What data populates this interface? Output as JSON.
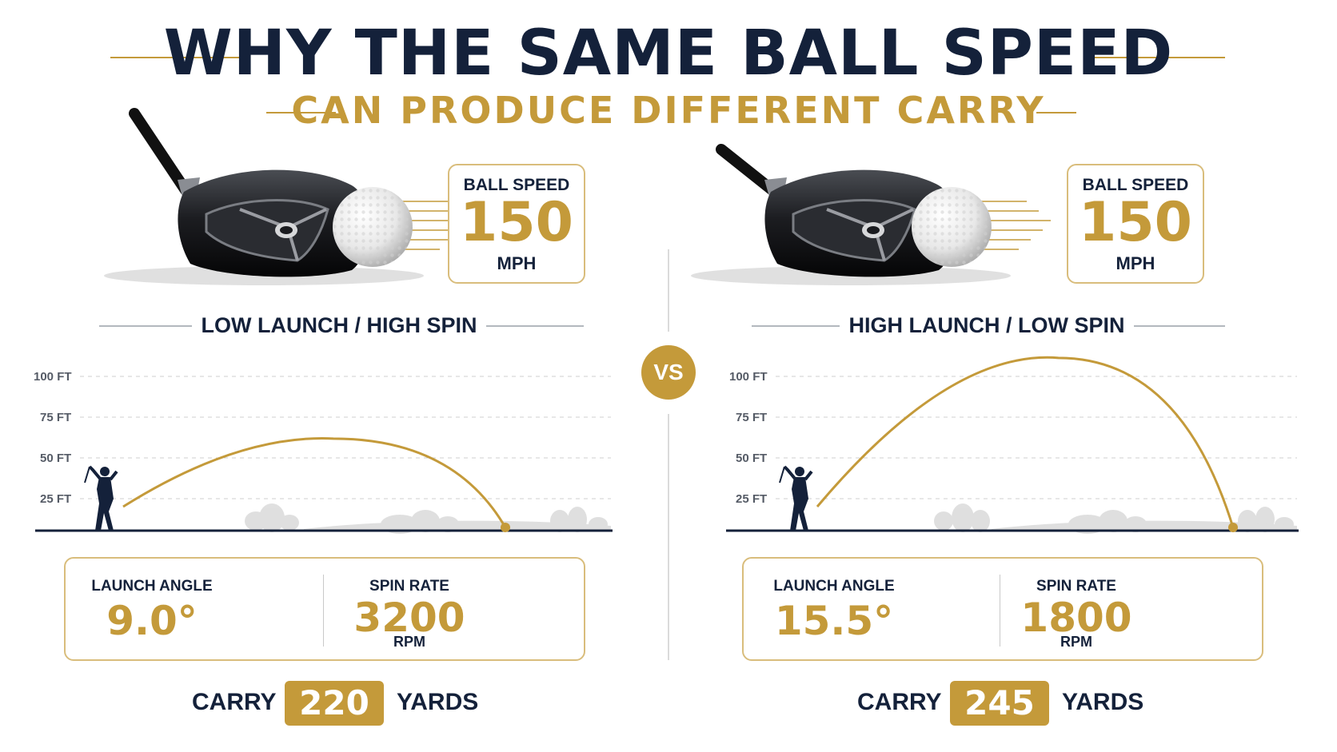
{
  "title": "WHY THE SAME BALL SPEED",
  "subtitle": "CAN PRODUCE DIFFERENT CARRY",
  "vs_label": "VS",
  "colors": {
    "navy": "#14213a",
    "gold": "#c49a3a",
    "gold_light": "#d9bd7c"
  },
  "y_axis_ticks": [
    "100 FT",
    "75 FT",
    "50 FT",
    "25 FT"
  ],
  "chart_data": [
    {
      "type": "line",
      "title": "LOW LAUNCH / HIGH SPIN",
      "y_ticks": [
        25,
        50,
        75,
        100
      ],
      "ylim": [
        0,
        100
      ],
      "series": [
        {
          "values": [
            0,
            57,
            0
          ],
          "color": "#c49a3a"
        }
      ],
      "ball_speed": 150,
      "launch_angle": 9.0,
      "spin_rate": 3200,
      "carry": 220
    },
    {
      "type": "line",
      "title": "HIGH LAUNCH / LOW SPIN",
      "y_ticks": [
        25,
        50,
        75,
        100
      ],
      "ylim": [
        0,
        100
      ],
      "series": [
        {
          "values": [
            0,
            107,
            0
          ],
          "color": "#c49a3a"
        }
      ],
      "ball_speed": 150,
      "launch_angle": 15.5,
      "spin_rate": 1800,
      "carry": 245
    }
  ],
  "panels": [
    {
      "ball_speed_label": "BALL SPEED",
      "ball_speed_value": "150",
      "ball_speed_unit": "MPH",
      "section_title": "LOW LAUNCH / HIGH SPIN",
      "launch_angle_label": "LAUNCH ANGLE",
      "launch_angle_value": "9.0°",
      "spin_rate_label": "SPIN RATE",
      "spin_rate_value": "3200",
      "spin_rate_unit": "RPM",
      "carry_label": "CARRY",
      "carry_value": "220",
      "carry_unit": "YARDS"
    },
    {
      "ball_speed_label": "BALL SPEED",
      "ball_speed_value": "150",
      "ball_speed_unit": "MPH",
      "section_title": "HIGH LAUNCH / LOW SPIN",
      "launch_angle_label": "LAUNCH ANGLE",
      "launch_angle_value": "15.5°",
      "spin_rate_label": "SPIN RATE",
      "spin_rate_value": "1800",
      "spin_rate_unit": "RPM",
      "carry_label": "CARRY",
      "carry_value": "245",
      "carry_unit": "YARDS"
    }
  ]
}
